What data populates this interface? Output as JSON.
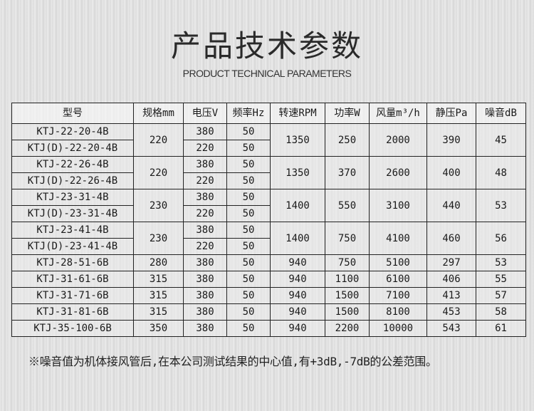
{
  "title": "产品技术参数",
  "subtitle": "PRODUCT TECHNICAL PARAMETERS",
  "table": {
    "headers": [
      "型号",
      "规格mm",
      "电压V",
      "频率Hz",
      "转速RPM",
      "功率W",
      "风量m³/h",
      "静压Pa",
      "噪音dB"
    ],
    "groups": [
      {
        "spec": "220",
        "rpm": "1350",
        "power": "250",
        "airflow": "2000",
        "pressure": "390",
        "noise": "45",
        "rows": [
          {
            "model": "KTJ-22-20-4B",
            "voltage": "380",
            "freq": "50"
          },
          {
            "model": "KTJ(D)-22-20-4B",
            "voltage": "220",
            "freq": "50"
          }
        ]
      },
      {
        "spec": "220",
        "rpm": "1350",
        "power": "370",
        "airflow": "2600",
        "pressure": "400",
        "noise": "48",
        "rows": [
          {
            "model": "KTJ-22-26-4B",
            "voltage": "380",
            "freq": "50"
          },
          {
            "model": "KTJ(D)-22-26-4B",
            "voltage": "220",
            "freq": "50"
          }
        ]
      },
      {
        "spec": "230",
        "rpm": "1400",
        "power": "550",
        "airflow": "3100",
        "pressure": "440",
        "noise": "53",
        "rows": [
          {
            "model": "KTJ-23-31-4B",
            "voltage": "380",
            "freq": "50"
          },
          {
            "model": "KTJ(D)-23-31-4B",
            "voltage": "220",
            "freq": "50"
          }
        ]
      },
      {
        "spec": "230",
        "rpm": "1400",
        "power": "750",
        "airflow": "4100",
        "pressure": "460",
        "noise": "56",
        "rows": [
          {
            "model": "KTJ-23-41-4B",
            "voltage": "380",
            "freq": "50"
          },
          {
            "model": "KTJ(D)-23-41-4B",
            "voltage": "220",
            "freq": "50"
          }
        ]
      },
      {
        "spec": "280",
        "rpm": "940",
        "power": "750",
        "airflow": "5100",
        "pressure": "297",
        "noise": "53",
        "rows": [
          {
            "model": "KTJ-28-51-6B",
            "voltage": "380",
            "freq": "50"
          }
        ]
      },
      {
        "spec": "315",
        "rpm": "940",
        "power": "1100",
        "airflow": "6100",
        "pressure": "406",
        "noise": "55",
        "rows": [
          {
            "model": "KTJ-31-61-6B",
            "voltage": "380",
            "freq": "50"
          }
        ]
      },
      {
        "spec": "315",
        "rpm": "940",
        "power": "1500",
        "airflow": "7100",
        "pressure": "413",
        "noise": "57",
        "rows": [
          {
            "model": "KTJ-31-71-6B",
            "voltage": "380",
            "freq": "50"
          }
        ]
      },
      {
        "spec": "315",
        "rpm": "940",
        "power": "1500",
        "airflow": "8100",
        "pressure": "453",
        "noise": "58",
        "rows": [
          {
            "model": "KTJ-31-81-6B",
            "voltage": "380",
            "freq": "50"
          }
        ]
      },
      {
        "spec": "350",
        "rpm": "940",
        "power": "2200",
        "airflow": "10000",
        "pressure": "543",
        "noise": "61",
        "rows": [
          {
            "model": "KTJ-35-100-6B",
            "voltage": "380",
            "freq": "50"
          }
        ]
      }
    ]
  },
  "note": "※噪音值为机体接风管后,在本公司测试结果的中心值,有+3dB,-7dB的公差范围。"
}
